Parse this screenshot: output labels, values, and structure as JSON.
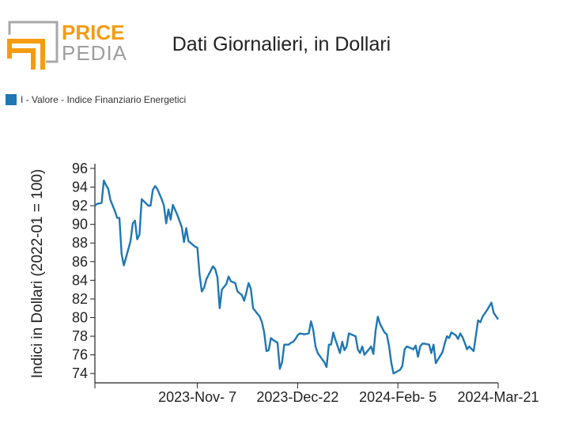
{
  "brand": {
    "line1": "PRICE",
    "line2": "PEDIA",
    "accent_color": "#f39c12",
    "gray_color": "#9e9e9e"
  },
  "header": {
    "title": "Dati Giornalieri, in Dollari"
  },
  "legend": {
    "items": [
      {
        "label": "I - Valore - Indice Finanziario Energetici",
        "color": "#1f77b4"
      }
    ]
  },
  "chart_data": {
    "type": "line",
    "title": "Dati Giornalieri, in Dollari",
    "ylabel": "Indici in Dollari (2022-01 = 100)",
    "xlabel": "",
    "ylim": [
      73,
      96.5
    ],
    "yticks": [
      74,
      76,
      78,
      80,
      82,
      84,
      86,
      88,
      90,
      92,
      94,
      96
    ],
    "xlim": [
      "2023-09-22",
      "2024-03-21"
    ],
    "xticks": [
      {
        "date": "2023-09-22",
        "label": ""
      },
      {
        "date": "2023-11-07",
        "label": "2023-Nov- 7"
      },
      {
        "date": "2023-12-22",
        "label": "2023-Dec-22"
      },
      {
        "date": "2024-02-05",
        "label": "2024-Feb- 5"
      },
      {
        "date": "2024-03-21",
        "label": "2024-Mar-21"
      }
    ],
    "grid": false,
    "legend_position": "top-left",
    "series": [
      {
        "name": "I - Valore - Indice Finanziario Energetici",
        "color": "#1f77b4",
        "points": [
          [
            "2023-09-22",
            92.0
          ],
          [
            "2023-09-23",
            92.2
          ],
          [
            "2023-09-25",
            92.3
          ],
          [
            "2023-09-26",
            94.7
          ],
          [
            "2023-09-27",
            94.2
          ],
          [
            "2023-09-28",
            93.8
          ],
          [
            "2023-09-29",
            92.6
          ],
          [
            "2023-10-01",
            91.4
          ],
          [
            "2023-10-02",
            90.7
          ],
          [
            "2023-10-03",
            90.7
          ],
          [
            "2023-10-04",
            86.8
          ],
          [
            "2023-10-05",
            85.6
          ],
          [
            "2023-10-08",
            88.2
          ],
          [
            "2023-10-09",
            90.1
          ],
          [
            "2023-10-10",
            90.4
          ],
          [
            "2023-10-11",
            88.4
          ],
          [
            "2023-10-12",
            88.9
          ],
          [
            "2023-10-13",
            92.7
          ],
          [
            "2023-10-16",
            92.0
          ],
          [
            "2023-10-17",
            92.0
          ],
          [
            "2023-10-18",
            93.7
          ],
          [
            "2023-10-19",
            94.1
          ],
          [
            "2023-10-20",
            93.8
          ],
          [
            "2023-10-22",
            92.7
          ],
          [
            "2023-10-23",
            92.0
          ],
          [
            "2023-10-24",
            90.1
          ],
          [
            "2023-10-25",
            91.6
          ],
          [
            "2023-10-26",
            90.5
          ],
          [
            "2023-10-27",
            92.1
          ],
          [
            "2023-10-29",
            91.0
          ],
          [
            "2023-10-31",
            89.7
          ],
          [
            "2023-11-01",
            88.1
          ],
          [
            "2023-11-02",
            89.6
          ],
          [
            "2023-11-03",
            88.2
          ],
          [
            "2023-11-06",
            87.6
          ],
          [
            "2023-11-07",
            87.5
          ],
          [
            "2023-11-08",
            84.6
          ],
          [
            "2023-11-09",
            82.8
          ],
          [
            "2023-11-10",
            83.2
          ],
          [
            "2023-11-11",
            84.1
          ],
          [
            "2023-11-14",
            85.5
          ],
          [
            "2023-11-15",
            85.2
          ],
          [
            "2023-11-16",
            84.3
          ],
          [
            "2023-11-17",
            81.0
          ],
          [
            "2023-11-18",
            83.0
          ],
          [
            "2023-11-20",
            83.6
          ],
          [
            "2023-11-21",
            84.4
          ],
          [
            "2023-11-22",
            83.9
          ],
          [
            "2023-11-24",
            83.7
          ],
          [
            "2023-11-25",
            82.8
          ],
          [
            "2023-11-27",
            82.4
          ],
          [
            "2023-11-28",
            81.8
          ],
          [
            "2023-11-29",
            82.7
          ],
          [
            "2023-11-30",
            83.7
          ],
          [
            "2023-12-01",
            83.1
          ],
          [
            "2023-12-02",
            81.0
          ],
          [
            "2023-12-05",
            80.1
          ],
          [
            "2023-12-06",
            79.5
          ],
          [
            "2023-12-07",
            78.4
          ],
          [
            "2023-12-08",
            76.4
          ],
          [
            "2023-12-09",
            76.5
          ],
          [
            "2023-12-10",
            77.8
          ],
          [
            "2023-12-11",
            77.6
          ],
          [
            "2023-12-13",
            77.3
          ],
          [
            "2023-12-14",
            74.5
          ],
          [
            "2023-12-15",
            75.2
          ],
          [
            "2023-12-16",
            77.1
          ],
          [
            "2023-12-18",
            77.1
          ],
          [
            "2023-12-19",
            77.3
          ],
          [
            "2023-12-20",
            77.4
          ],
          [
            "2023-12-21",
            77.7
          ],
          [
            "2023-12-22",
            78.1
          ],
          [
            "2023-12-23",
            78.3
          ],
          [
            "2023-12-25",
            78.2
          ],
          [
            "2023-12-27",
            78.3
          ],
          [
            "2023-12-28",
            79.6
          ],
          [
            "2023-12-29",
            78.7
          ],
          [
            "2023-12-30",
            76.9
          ],
          [
            "2023-12-31",
            76.2
          ],
          [
            "2024-01-03",
            75.2
          ],
          [
            "2024-01-04",
            74.7
          ],
          [
            "2024-01-05",
            77.1
          ],
          [
            "2024-01-06",
            77.1
          ],
          [
            "2024-01-07",
            78.4
          ],
          [
            "2024-01-08",
            77.6
          ],
          [
            "2024-01-10",
            76.2
          ],
          [
            "2024-01-11",
            77.4
          ],
          [
            "2024-01-12",
            76.5
          ],
          [
            "2024-01-13",
            76.9
          ],
          [
            "2024-01-14",
            78.3
          ],
          [
            "2024-01-17",
            78.0
          ],
          [
            "2024-01-18",
            76.6
          ],
          [
            "2024-01-19",
            76.2
          ],
          [
            "2024-01-20",
            76.9
          ],
          [
            "2024-01-21",
            76.0
          ],
          [
            "2024-01-24",
            76.9
          ],
          [
            "2024-01-25",
            76.1
          ],
          [
            "2024-01-26",
            78.6
          ],
          [
            "2024-01-27",
            80.1
          ],
          [
            "2024-01-28",
            79.3
          ],
          [
            "2024-01-30",
            78.4
          ],
          [
            "2024-01-31",
            78.2
          ],
          [
            "2024-02-01",
            77.0
          ],
          [
            "2024-02-02",
            75.2
          ],
          [
            "2024-02-03",
            74.0
          ],
          [
            "2024-02-06",
            74.4
          ],
          [
            "2024-02-07",
            74.8
          ],
          [
            "2024-02-08",
            76.6
          ],
          [
            "2024-02-09",
            76.9
          ],
          [
            "2024-02-12",
            76.6
          ],
          [
            "2024-02-13",
            77.0
          ],
          [
            "2024-02-14",
            75.8
          ],
          [
            "2024-02-15",
            76.9
          ],
          [
            "2024-02-16",
            77.2
          ],
          [
            "2024-02-17",
            77.2
          ],
          [
            "2024-02-19",
            77.1
          ],
          [
            "2024-02-20",
            76.2
          ],
          [
            "2024-02-21",
            77.1
          ],
          [
            "2024-02-22",
            75.1
          ],
          [
            "2024-02-23",
            75.5
          ],
          [
            "2024-02-25",
            76.3
          ],
          [
            "2024-02-26",
            77.2
          ],
          [
            "2024-02-27",
            78.0
          ],
          [
            "2024-02-28",
            77.8
          ],
          [
            "2024-02-29",
            78.4
          ],
          [
            "2024-03-02",
            78.1
          ],
          [
            "2024-03-03",
            77.7
          ],
          [
            "2024-03-04",
            78.3
          ],
          [
            "2024-03-05",
            77.9
          ],
          [
            "2024-03-06",
            77.3
          ],
          [
            "2024-03-07",
            76.6
          ],
          [
            "2024-03-08",
            76.9
          ],
          [
            "2024-03-10",
            76.4
          ],
          [
            "2024-03-12",
            79.7
          ],
          [
            "2024-03-13",
            79.5
          ],
          [
            "2024-03-14",
            80.1
          ],
          [
            "2024-03-16",
            80.8
          ],
          [
            "2024-03-18",
            81.6
          ],
          [
            "2024-03-19",
            80.5
          ],
          [
            "2024-03-21",
            79.8
          ]
        ]
      }
    ]
  }
}
